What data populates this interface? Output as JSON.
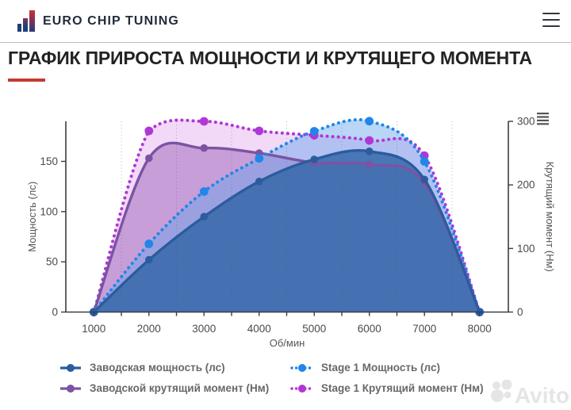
{
  "header": {
    "brand": "EURO CHIP TUNING"
  },
  "page": {
    "title": "ГРАФИК ПРИРОСТА МОЩНОСТИ И КРУТЯЩЕГО МОМЕНТА"
  },
  "watermark": {
    "text": "Avito"
  },
  "chart_data": {
    "type": "area",
    "x": [
      1000,
      2000,
      3000,
      4000,
      5000,
      6000,
      7000,
      8000
    ],
    "xlabel": "Об/мин",
    "grid_x": [
      1500,
      2500,
      3500,
      4500,
      5500,
      6500,
      7500
    ],
    "x_tick_step": 500,
    "left_axis": {
      "title": "Мощность (лс)",
      "ticks": [
        0,
        50,
        100,
        150
      ],
      "min": 0,
      "max": 190
    },
    "right_axis": {
      "title": "Крутящий момент (Нм)",
      "ticks": [
        0,
        100,
        200,
        300
      ],
      "min": 0,
      "max": 300
    },
    "series": [
      {
        "key": "factory-power",
        "name": "Заводская мощность (лс)",
        "axis": "left",
        "line": "solid",
        "color": "#2b5c9e",
        "fill": "rgba(54,105,170,0.85)",
        "values": [
          0,
          52,
          95,
          130,
          152,
          160,
          132,
          0
        ]
      },
      {
        "key": "stage1-power",
        "name": "Stage 1 Мощность (лс)",
        "axis": "left",
        "line": "dotted",
        "color": "#2087e8",
        "fill": "rgba(100,165,235,0.45)",
        "values": [
          0,
          68,
          120,
          153,
          180,
          190,
          150,
          0
        ]
      },
      {
        "key": "factory-torque",
        "name": "Заводской крутящий момент (Нм)",
        "axis": "right",
        "line": "solid",
        "color": "#7a54a3",
        "fill": "rgba(158,100,185,0.50)",
        "values": [
          0,
          242,
          258,
          250,
          235,
          232,
          203,
          0
        ]
      },
      {
        "key": "stage1-torque",
        "name": "Stage 1 Крутящий момент (Нм)",
        "axis": "right",
        "line": "dotted",
        "color": "#b136d6",
        "fill": "rgba(207,120,228,0.28)",
        "values": [
          0,
          285,
          300,
          285,
          278,
          270,
          246,
          0
        ]
      }
    ],
    "legend": {
      "columns": 2,
      "order": [
        "factory-power",
        "stage1-power",
        "factory-torque",
        "stage1-torque"
      ],
      "position": "bottom"
    },
    "grid": "vertical-dotted-only"
  }
}
